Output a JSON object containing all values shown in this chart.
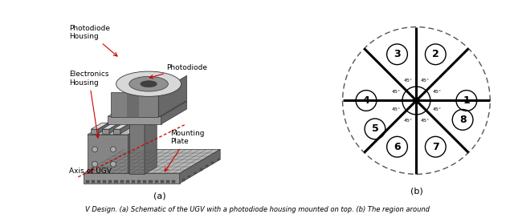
{
  "fig_width": 6.4,
  "fig_height": 2.67,
  "dpi": 100,
  "bg_color": "#ffffff",
  "red_color": "#cc0000",
  "text_color": "#000000",
  "c_light": "#c8c8c8",
  "c_mid": "#909090",
  "c_dark": "#686868",
  "c_top": "#b8b8b8",
  "c_very_light": "#d8d8d8",
  "c_pillar": "#787878",
  "sector_positions": [
    [
      "1",
      0.0
    ],
    [
      "2",
      67.5
    ],
    [
      "3",
      112.5
    ],
    [
      "4",
      180.0
    ],
    [
      "5",
      214.5
    ],
    [
      "6",
      247.5
    ],
    [
      "7",
      292.5
    ],
    [
      "8",
      337.5
    ]
  ],
  "r_label": 0.68,
  "label_circle_r": 0.14,
  "angle_labels": [
    [
      22.5,
      0.3,
      "45°"
    ],
    [
      67.5,
      0.3,
      "45°"
    ],
    [
      112.5,
      0.3,
      "45°"
    ],
    [
      157.5,
      0.3,
      "45°"
    ],
    [
      202.5,
      0.3,
      "45°"
    ],
    [
      247.5,
      0.3,
      "45°"
    ],
    [
      292.5,
      0.3,
      "45°"
    ],
    [
      337.5,
      0.3,
      "45°"
    ]
  ],
  "caption_text": "V Design. (a) Schematic of the UGV with a photodiode housing mounted on top. (b) The region around"
}
